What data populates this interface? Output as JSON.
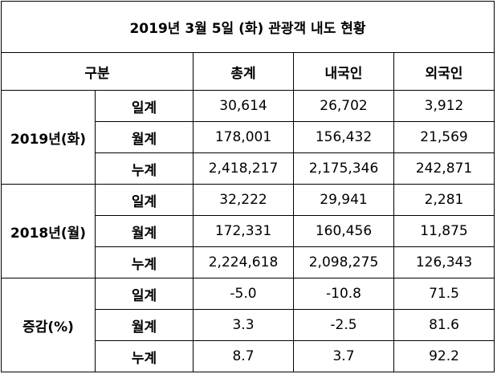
{
  "title": "2019년 3월 5일 (화) 관광객 내도 현황",
  "header": [
    "구분",
    "총계",
    "내국인",
    "외국인"
  ],
  "groups": [
    {
      "label": "2019년(화)",
      "rows": [
        {
          "label": "일계",
          "values": [
            "30,614",
            "26,702",
            "3,912"
          ]
        },
        {
          "label": "월계",
          "values": [
            "178,001",
            "156,432",
            "21,569"
          ]
        },
        {
          "label": "누계",
          "values": [
            "2,418,217",
            "2,175,346",
            "242,871"
          ]
        }
      ]
    },
    {
      "label": "2018년(월)",
      "rows": [
        {
          "label": "일계",
          "values": [
            "32,222",
            "29,941",
            "2,281"
          ]
        },
        {
          "label": "월계",
          "values": [
            "172,331",
            "160,456",
            "11,875"
          ]
        },
        {
          "label": "누계",
          "values": [
            "2,224,618",
            "2,098,275",
            "126,343"
          ]
        }
      ]
    },
    {
      "label": "증감(%)",
      "rows": [
        {
          "label": "일계",
          "values": [
            "-5.0",
            "-10.8",
            "71.5"
          ]
        },
        {
          "label": "월계",
          "values": [
            "3.3",
            "-2.5",
            "81.6"
          ]
        },
        {
          "label": "누계",
          "values": [
            "8.7",
            "3.7",
            "92.2"
          ]
        }
      ]
    }
  ]
}
